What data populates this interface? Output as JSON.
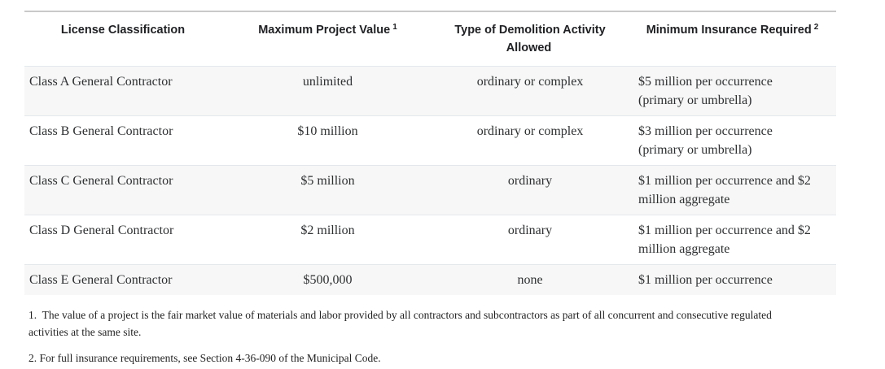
{
  "table": {
    "columns": [
      {
        "label": "License Classification",
        "sup": ""
      },
      {
        "label": "Maximum Project Value",
        "sup": "1"
      },
      {
        "label": "Type of Demolition Activity Allowed",
        "sup": ""
      },
      {
        "label": "Minimum Insurance Required",
        "sup": "2"
      }
    ],
    "rows": [
      {
        "classification": "Class A General Contractor",
        "max_value": "unlimited",
        "activity": "ordinary or complex",
        "insurance": "$5 million per occurrence\n(primary or umbrella)"
      },
      {
        "classification": "Class B General Contractor",
        "max_value": "$10 million",
        "activity": "ordinary or complex",
        "insurance": "$3 million per occurrence\n(primary or umbrella)"
      },
      {
        "classification": "Class C General Contractor",
        "max_value": "$5 million",
        "activity": "ordinary",
        "insurance": "$1 million per occurrence and $2\nmillion aggregate"
      },
      {
        "classification": "Class D General Contractor",
        "max_value": "$2 million",
        "activity": "ordinary",
        "insurance": "$1 million per occurrence and $2\nmillion aggregate"
      },
      {
        "classification": "Class E General Contractor",
        "max_value": "$500,000",
        "activity": "none",
        "insurance": "$1 million per occurrence"
      }
    ]
  },
  "footnotes": [
    "1.  The value of a project is the fair market value of materials and labor provided by all contractors and subcontractors as part of all concurrent and consecutive regulated\nactivities at the same site.",
    "2. For full insurance requirements, see Section 4-36-090 of the Municipal Code."
  ],
  "colors": {
    "stripe_row_background": "#f7f7f7",
    "row_divider": "#e4e8ec",
    "table_top_border": "#c9c9c9",
    "header_text": "#202124",
    "body_text": "#2d2f31"
  }
}
